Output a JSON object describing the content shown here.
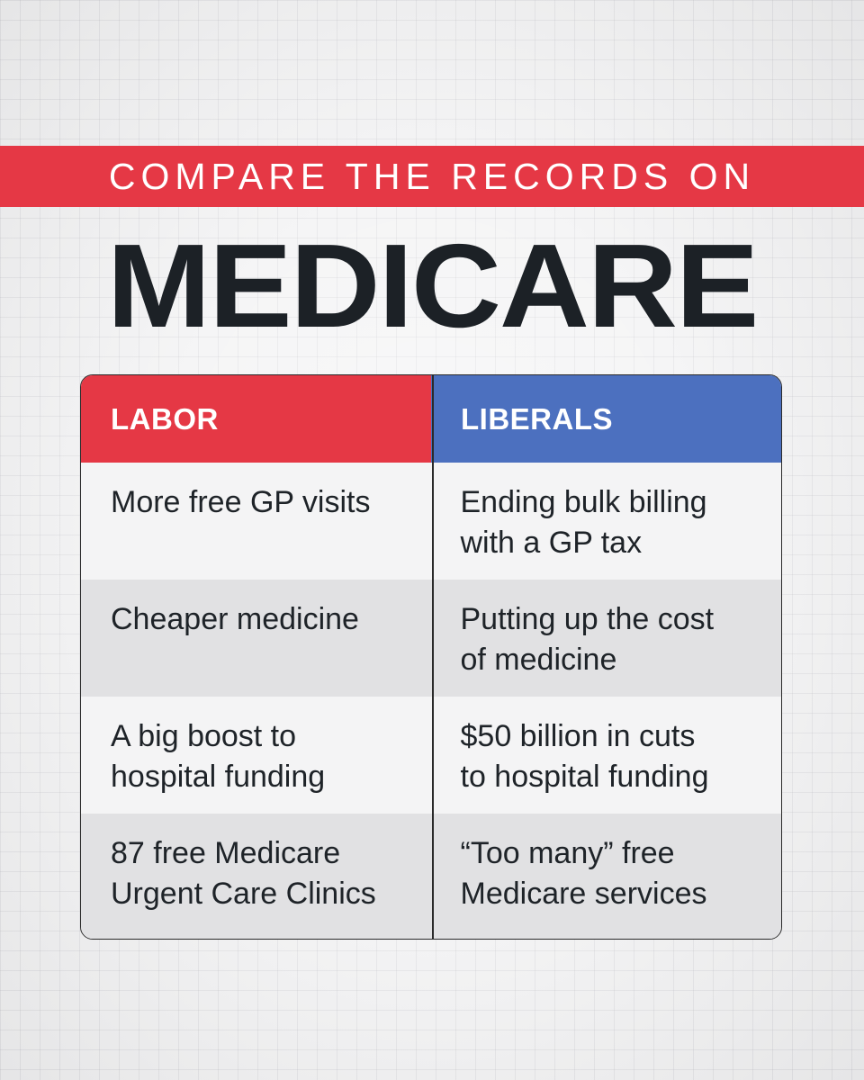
{
  "colors": {
    "labor_red": "#e53845",
    "liberal_blue": "#4c70bf",
    "banner_red": "#e53845",
    "row_light": "#f4f4f5",
    "row_dark": "#e1e1e3",
    "text_dark": "#1c2126"
  },
  "banner": {
    "text": "COMPARE THE RECORDS ON"
  },
  "headline": {
    "text": "MEDICARE"
  },
  "table": {
    "headers": {
      "left": "LABOR",
      "right": "LIBERALS"
    },
    "rows": [
      {
        "labor": "More free GP visits",
        "liberals": "Ending bulk billing\nwith a GP tax"
      },
      {
        "labor": "Cheaper medicine",
        "liberals": "Putting up the cost\nof medicine"
      },
      {
        "labor": "A big boost to\nhospital funding",
        "liberals": "$50 billion in cuts\nto hospital funding"
      },
      {
        "labor": "87 free Medicare\nUrgent Care Clinics",
        "liberals": "“Too many” free\nMedicare services"
      }
    ]
  }
}
